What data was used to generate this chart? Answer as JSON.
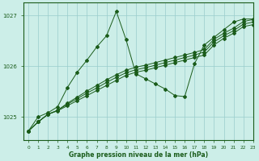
{
  "xlabel": "Graphe pression niveau de la mer (hPa)",
  "bg_color": "#cceee8",
  "grid_color": "#99cccc",
  "line_color": "#1a5c1a",
  "marker_color": "#1a5c1a",
  "axes_color": "#1a5c1a",
  "xlim": [
    -0.5,
    23
  ],
  "ylim": [
    1024.55,
    1027.25
  ],
  "yticks": [
    1025,
    1026,
    1027
  ],
  "xticks": [
    0,
    1,
    2,
    3,
    4,
    5,
    6,
    7,
    8,
    9,
    10,
    11,
    12,
    13,
    14,
    15,
    16,
    17,
    18,
    19,
    20,
    21,
    22,
    23
  ],
  "line_straight1": [
    [
      0,
      1024.72
    ],
    [
      1,
      1024.9
    ],
    [
      2,
      1025.05
    ],
    [
      3,
      1025.12
    ],
    [
      4,
      1025.22
    ],
    [
      5,
      1025.32
    ],
    [
      6,
      1025.42
    ],
    [
      7,
      1025.52
    ],
    [
      8,
      1025.62
    ],
    [
      9,
      1025.72
    ],
    [
      10,
      1025.82
    ],
    [
      11,
      1025.88
    ],
    [
      12,
      1025.92
    ],
    [
      13,
      1025.97
    ],
    [
      14,
      1026.02
    ],
    [
      15,
      1026.07
    ],
    [
      16,
      1026.12
    ],
    [
      17,
      1026.17
    ],
    [
      18,
      1026.22
    ],
    [
      19,
      1026.42
    ],
    [
      20,
      1026.55
    ],
    [
      21,
      1026.65
    ],
    [
      22,
      1026.78
    ],
    [
      23,
      1026.82
    ]
  ],
  "line_straight2": [
    [
      0,
      1024.72
    ],
    [
      1,
      1024.9
    ],
    [
      2,
      1025.05
    ],
    [
      3,
      1025.13
    ],
    [
      4,
      1025.25
    ],
    [
      5,
      1025.36
    ],
    [
      6,
      1025.47
    ],
    [
      7,
      1025.57
    ],
    [
      8,
      1025.68
    ],
    [
      9,
      1025.78
    ],
    [
      10,
      1025.87
    ],
    [
      11,
      1025.93
    ],
    [
      12,
      1025.97
    ],
    [
      13,
      1026.02
    ],
    [
      14,
      1026.07
    ],
    [
      15,
      1026.12
    ],
    [
      16,
      1026.17
    ],
    [
      17,
      1026.22
    ],
    [
      18,
      1026.28
    ],
    [
      19,
      1026.48
    ],
    [
      20,
      1026.6
    ],
    [
      21,
      1026.7
    ],
    [
      22,
      1026.83
    ],
    [
      23,
      1026.87
    ]
  ],
  "line_straight3": [
    [
      0,
      1024.72
    ],
    [
      1,
      1024.9
    ],
    [
      2,
      1025.05
    ],
    [
      3,
      1025.13
    ],
    [
      4,
      1025.27
    ],
    [
      5,
      1025.39
    ],
    [
      6,
      1025.51
    ],
    [
      7,
      1025.62
    ],
    [
      8,
      1025.73
    ],
    [
      9,
      1025.83
    ],
    [
      10,
      1025.92
    ],
    [
      11,
      1025.98
    ],
    [
      12,
      1026.02
    ],
    [
      13,
      1026.07
    ],
    [
      14,
      1026.12
    ],
    [
      15,
      1026.17
    ],
    [
      16,
      1026.22
    ],
    [
      17,
      1026.27
    ],
    [
      18,
      1026.33
    ],
    [
      19,
      1026.53
    ],
    [
      20,
      1026.65
    ],
    [
      21,
      1026.75
    ],
    [
      22,
      1026.88
    ],
    [
      23,
      1026.92
    ]
  ],
  "line_spike": [
    [
      0,
      1024.72
    ],
    [
      1,
      1025.0
    ],
    [
      2,
      1025.08
    ],
    [
      3,
      1025.2
    ],
    [
      4,
      1025.58
    ],
    [
      5,
      1025.88
    ],
    [
      6,
      1026.12
    ],
    [
      7,
      1026.38
    ],
    [
      8,
      1026.6
    ],
    [
      9,
      1027.08
    ],
    [
      10,
      1026.52
    ],
    [
      11,
      1025.85
    ],
    [
      12,
      1025.75
    ],
    [
      13,
      1025.65
    ],
    [
      14,
      1025.55
    ],
    [
      15,
      1025.42
    ],
    [
      16,
      1025.4
    ],
    [
      17,
      1026.05
    ],
    [
      18,
      1026.42
    ],
    [
      19,
      1026.57
    ],
    [
      20,
      1026.72
    ],
    [
      21,
      1026.87
    ],
    [
      22,
      1026.93
    ],
    [
      23,
      1026.93
    ]
  ]
}
